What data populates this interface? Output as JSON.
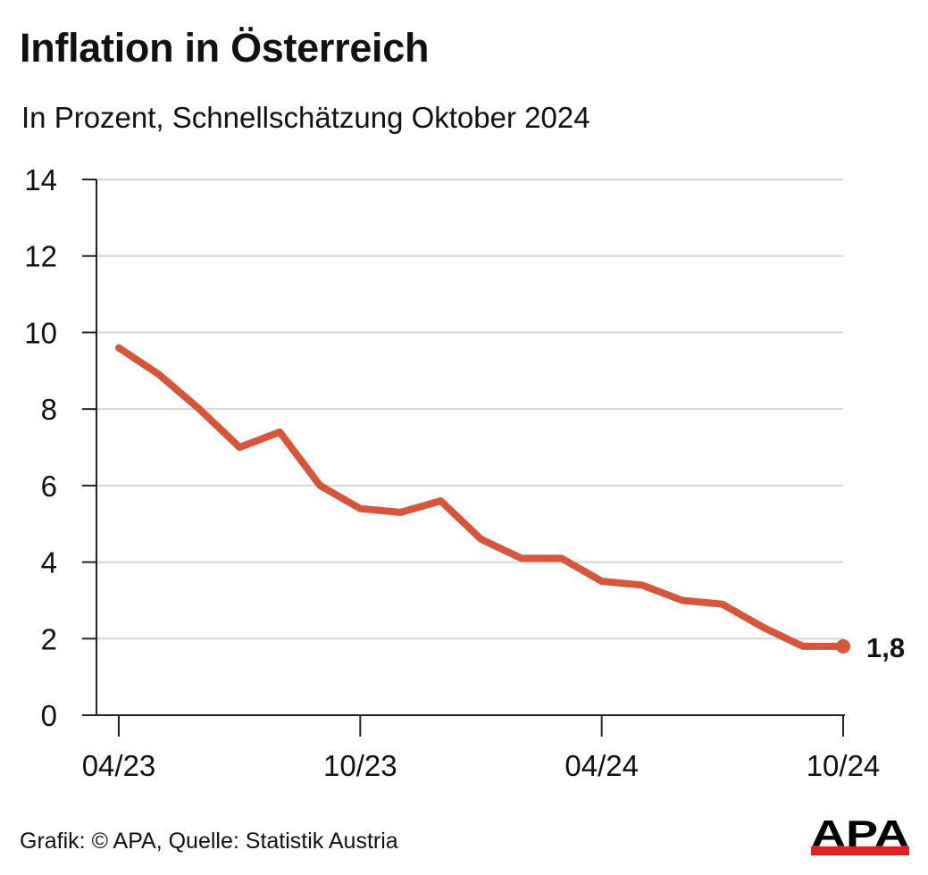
{
  "title": "Inflation in Österreich",
  "subtitle": "In Prozent, Schnellschätzung Oktober 2024",
  "source": "Grafik: © APA, Quelle: Statistik Austria",
  "logo_text": "APA",
  "colors": {
    "line": "#d9553a",
    "grid": "#d6d6d6",
    "axis": "#222222",
    "logo_text": "#000000",
    "logo_bar": "#e3202a"
  },
  "chart_data": {
    "type": "line",
    "title": "Inflation in Österreich",
    "subtitle": "In Prozent, Schnellschätzung Oktober 2024",
    "xlabel": "",
    "ylabel": "",
    "x": [
      "04/23",
      "05/23",
      "06/23",
      "07/23",
      "08/23",
      "09/23",
      "10/23",
      "11/23",
      "12/23",
      "01/24",
      "02/24",
      "03/24",
      "04/24",
      "05/24",
      "06/24",
      "07/24",
      "08/24",
      "09/24",
      "10/24"
    ],
    "series": [
      {
        "values": [
          9.6,
          8.9,
          8.0,
          7.0,
          7.4,
          6.0,
          5.4,
          5.3,
          5.6,
          4.6,
          4.1,
          4.1,
          3.5,
          3.4,
          3.0,
          2.9,
          2.3,
          1.8,
          1.8
        ]
      }
    ],
    "ylim": [
      0,
      14
    ],
    "y_ticks": [
      "0",
      "2",
      "4",
      "6",
      "8",
      "10",
      "12",
      "14"
    ],
    "x_ticks": [
      "04/23",
      "10/23",
      "04/24",
      "10/24"
    ],
    "end_label": "1,8",
    "grid": true,
    "legend": "none"
  }
}
